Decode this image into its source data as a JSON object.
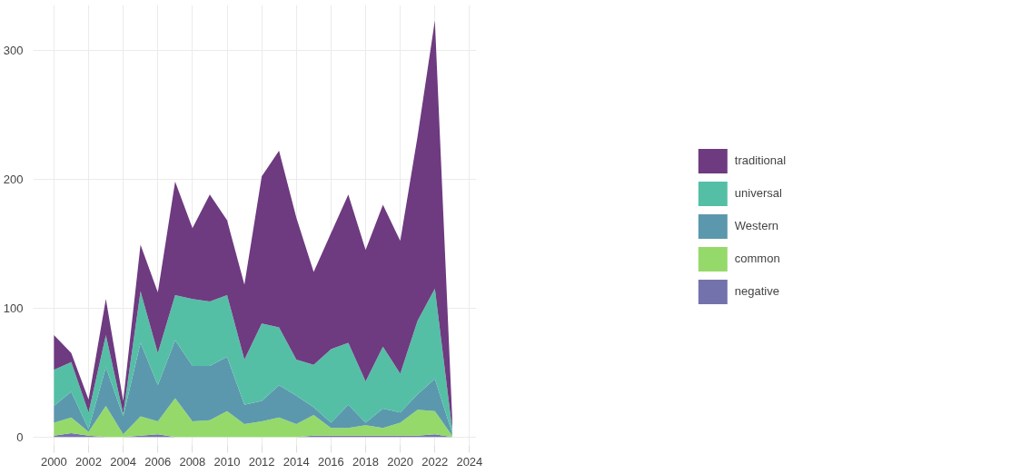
{
  "chart_data": {
    "type": "area",
    "stacked": true,
    "x": [
      2000,
      2001,
      2002,
      2003,
      2004,
      2005,
      2006,
      2007,
      2008,
      2009,
      2010,
      2011,
      2012,
      2013,
      2014,
      2015,
      2016,
      2017,
      2018,
      2019,
      2020,
      2021,
      2022,
      2023
    ],
    "series": [
      {
        "name": "negative",
        "color": "#7472ad",
        "values": [
          1,
          3,
          1,
          0,
          0,
          1,
          2,
          0,
          0,
          0,
          0,
          0,
          0,
          0,
          0,
          1,
          1,
          1,
          1,
          1,
          1,
          1,
          2,
          0
        ]
      },
      {
        "name": "common",
        "color": "#95d96b",
        "values": [
          10,
          12,
          3,
          24,
          2,
          15,
          10,
          30,
          12,
          13,
          20,
          10,
          12,
          15,
          10,
          16,
          6,
          6,
          8,
          6,
          10,
          20,
          18,
          1
        ]
      },
      {
        "name": "Western",
        "color": "#5b98ad",
        "values": [
          13,
          20,
          2,
          30,
          14,
          57,
          28,
          45,
          43,
          42,
          42,
          15,
          16,
          25,
          22,
          6,
          4,
          18,
          2,
          15,
          8,
          12,
          25,
          2
        ]
      },
      {
        "name": "universal",
        "color": "#55bfa6",
        "values": [
          28,
          23,
          13,
          25,
          2,
          40,
          25,
          35,
          52,
          50,
          48,
          35,
          60,
          45,
          28,
          33,
          57,
          48,
          32,
          48,
          30,
          57,
          70,
          3
        ]
      },
      {
        "name": "traditional",
        "color": "#6e3a80",
        "values": [
          27,
          7,
          10,
          28,
          10,
          36,
          47,
          88,
          55,
          83,
          58,
          58,
          114,
          137,
          110,
          72,
          90,
          115,
          102,
          110,
          103,
          143,
          208,
          9
        ]
      }
    ],
    "xlim": [
      1998.8,
      2024.4
    ],
    "xticks": [
      2000,
      2002,
      2004,
      2006,
      2008,
      2010,
      2012,
      2014,
      2016,
      2018,
      2020,
      2022,
      2024
    ],
    "ylim": [
      -8,
      335
    ],
    "yticks": [
      0,
      100,
      200,
      300
    ],
    "grid": true,
    "legend": "right"
  }
}
